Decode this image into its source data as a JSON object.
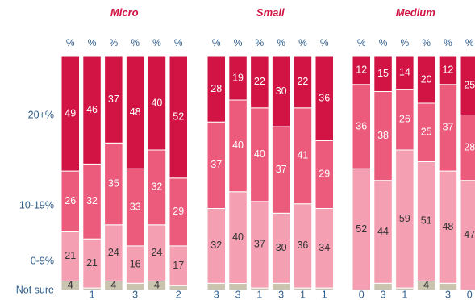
{
  "chart_data": {
    "type": "bar",
    "stacked": true,
    "normalized": true,
    "row_labels": [
      "20+%",
      "10-19%",
      "0-9%",
      "Not sure"
    ],
    "unit_label": "%",
    "colors": {
      "20+%": "#d21444",
      "10-19%": "#ec5a7c",
      "0-9%": "#f5a0b2",
      "Not sure": "#c9c3b0"
    },
    "panels": [
      {
        "title": "Micro",
        "columns": [
          {
            "20+%": 49,
            "10-19%": 26,
            "0-9%": 21,
            "Not sure": 4
          },
          {
            "20+%": 46,
            "10-19%": 32,
            "0-9%": 21,
            "Not sure": 1
          },
          {
            "20+%": 37,
            "10-19%": 35,
            "0-9%": 24,
            "Not sure": 4
          },
          {
            "20+%": 48,
            "10-19%": 33,
            "0-9%": 16,
            "Not sure": 3
          },
          {
            "20+%": 40,
            "10-19%": 32,
            "0-9%": 24,
            "Not sure": 4
          },
          {
            "20+%": 52,
            "10-19%": 29,
            "0-9%": 17,
            "Not sure": 2
          }
        ]
      },
      {
        "title": "Small",
        "columns": [
          {
            "20+%": 28,
            "10-19%": 37,
            "0-9%": 32,
            "Not sure": 3
          },
          {
            "20+%": 19,
            "10-19%": 40,
            "0-9%": 40,
            "Not sure": 3
          },
          {
            "20+%": 22,
            "10-19%": 40,
            "0-9%": 37,
            "Not sure": 1
          },
          {
            "20+%": 30,
            "10-19%": 37,
            "0-9%": 30,
            "Not sure": 3
          },
          {
            "20+%": 22,
            "10-19%": 41,
            "0-9%": 36,
            "Not sure": 1
          },
          {
            "20+%": 36,
            "10-19%": 29,
            "0-9%": 34,
            "Not sure": 1
          }
        ]
      },
      {
        "title": "Medium",
        "columns": [
          {
            "20+%": 12,
            "10-19%": 36,
            "0-9%": 52,
            "Not sure": 0
          },
          {
            "20+%": 15,
            "10-19%": 38,
            "0-9%": 44,
            "Not sure": 3
          },
          {
            "20+%": 14,
            "10-19%": 26,
            "0-9%": 59,
            "Not sure": 1
          },
          {
            "20+%": 20,
            "10-19%": 25,
            "0-9%": 51,
            "Not sure": 4
          },
          {
            "20+%": 12,
            "10-19%": 37,
            "0-9%": 48,
            "Not sure": 3
          },
          {
            "20+%": 25,
            "10-19%": 28,
            "0-9%": 47,
            "Not sure": 0
          }
        ]
      }
    ],
    "grid": false,
    "legend": "none"
  }
}
